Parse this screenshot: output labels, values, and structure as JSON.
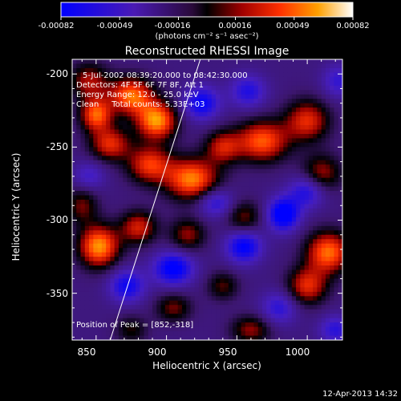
{
  "colorbar": {
    "tick_labels": [
      "-0.00082",
      "-0.00049",
      "-0.00016",
      "0.00016",
      "0.00049",
      "0.00082"
    ],
    "unit_label": "(photons cm⁻² s⁻¹ asec⁻²)",
    "range": [
      -0.00082,
      0.00082
    ]
  },
  "chart_data": {
    "type": "heatmap",
    "title": "Reconstructed RHESSI Image",
    "xlabel": "Heliocentric X (arcsec)",
    "ylabel": "Heliocentric Y (arcsec)",
    "xlim": [
      833,
      1025
    ],
    "ylim": [
      -382,
      -190
    ],
    "xticks": [
      850,
      900,
      950,
      1000
    ],
    "yticks": [
      -200,
      -250,
      -300,
      -350
    ],
    "annotations": [
      "5-Jul-2002 08:39:20.000 to 08:42:30.000",
      "Detectors: 4F 5F 6F 7F 8F, Att 1",
      "Energy Range: 12.0 - 25.0 keV",
      "Clean     Total counts: 5.33E+03"
    ],
    "peak_label": "Position of Peak = [852,-318]",
    "peak": [
      852,
      -318
    ],
    "limb_line": [
      [
        860,
        -382
      ],
      [
        924,
        -190
      ]
    ],
    "blobs": [
      {
        "x": 845,
        "y": -205,
        "v": 0.55,
        "sx": 10,
        "sy": 9
      },
      {
        "x": 850,
        "y": -228,
        "v": 0.85,
        "sx": 8,
        "sy": 8
      },
      {
        "x": 875,
        "y": -215,
        "v": 0.9,
        "sx": 11,
        "sy": 9
      },
      {
        "x": 893,
        "y": -232,
        "v": 1.0,
        "sx": 10,
        "sy": 9
      },
      {
        "x": 860,
        "y": -248,
        "v": 0.7,
        "sx": 10,
        "sy": 8
      },
      {
        "x": 888,
        "y": -262,
        "v": 0.75,
        "sx": 11,
        "sy": 9
      },
      {
        "x": 918,
        "y": -272,
        "v": 0.95,
        "sx": 13,
        "sy": 10
      },
      {
        "x": 940,
        "y": -250,
        "v": 0.6,
        "sx": 9,
        "sy": 8
      },
      {
        "x": 968,
        "y": -246,
        "v": 0.85,
        "sx": 13,
        "sy": 10
      },
      {
        "x": 1000,
        "y": -232,
        "v": 0.7,
        "sx": 11,
        "sy": 10
      },
      {
        "x": 1010,
        "y": -268,
        "v": 0.55,
        "sx": 10,
        "sy": 9
      },
      {
        "x": 852,
        "y": -318,
        "v": 1.0,
        "sx": 10,
        "sy": 10
      },
      {
        "x": 880,
        "y": -305,
        "v": 0.65,
        "sx": 9,
        "sy": 8
      },
      {
        "x": 915,
        "y": -310,
        "v": 0.5,
        "sx": 9,
        "sy": 8
      },
      {
        "x": 955,
        "y": -298,
        "v": 0.45,
        "sx": 9,
        "sy": 8
      },
      {
        "x": 1015,
        "y": -322,
        "v": 0.9,
        "sx": 11,
        "sy": 10
      },
      {
        "x": 1000,
        "y": -345,
        "v": 0.7,
        "sx": 10,
        "sy": 9
      },
      {
        "x": 905,
        "y": -360,
        "v": 0.45,
        "sx": 9,
        "sy": 7
      },
      {
        "x": 940,
        "y": -345,
        "v": 0.4,
        "sx": 8,
        "sy": 7
      },
      {
        "x": 960,
        "y": -375,
        "v": 0.5,
        "sx": 10,
        "sy": 7
      },
      {
        "x": 875,
        "y": -375,
        "v": 0.35,
        "sx": 8,
        "sy": 7
      },
      {
        "x": 840,
        "y": -290,
        "v": 0.45,
        "sx": 8,
        "sy": 9
      },
      {
        "x": 925,
        "y": -220,
        "v": -0.65,
        "sx": 9,
        "sy": 8
      },
      {
        "x": 958,
        "y": -212,
        "v": -0.5,
        "sx": 9,
        "sy": 8
      },
      {
        "x": 983,
        "y": -296,
        "v": -0.85,
        "sx": 8,
        "sy": 8
      },
      {
        "x": 955,
        "y": -318,
        "v": -0.7,
        "sx": 9,
        "sy": 8
      },
      {
        "x": 905,
        "y": -333,
        "v": -0.75,
        "sx": 10,
        "sy": 8
      },
      {
        "x": 872,
        "y": -345,
        "v": -0.6,
        "sx": 9,
        "sy": 8
      },
      {
        "x": 1000,
        "y": -280,
        "v": -0.55,
        "sx": 9,
        "sy": 8
      },
      {
        "x": 935,
        "y": -288,
        "v": -0.5,
        "sx": 9,
        "sy": 7
      },
      {
        "x": 980,
        "y": -360,
        "v": -0.45,
        "sx": 9,
        "sy": 8
      },
      {
        "x": 1022,
        "y": -205,
        "v": -0.4,
        "sx": 8,
        "sy": 8
      },
      {
        "x": 845,
        "y": -270,
        "v": -0.35,
        "sx": 8,
        "sy": 7
      },
      {
        "x": 1020,
        "y": -375,
        "v": -0.45,
        "sx": 8,
        "sy": 7
      }
    ],
    "grid": false
  },
  "footer": {
    "timestamp": "12-Apr-2013 14:32"
  }
}
